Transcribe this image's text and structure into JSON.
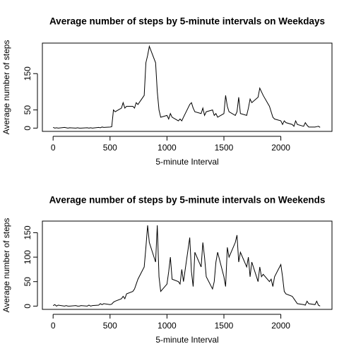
{
  "chart_data": [
    {
      "type": "line",
      "title": "Average number of steps by 5-minute intervals on Weekdays",
      "x_label": "5-minute Interval",
      "y_label": "Average number of steps",
      "x": [
        0,
        15,
        30,
        45,
        100,
        115,
        130,
        145,
        200,
        215,
        230,
        245,
        300,
        315,
        330,
        345,
        400,
        415,
        430,
        445,
        500,
        515,
        530,
        545,
        600,
        615,
        630,
        645,
        700,
        715,
        730,
        745,
        800,
        815,
        830,
        845,
        900,
        915,
        930,
        945,
        1000,
        1015,
        1030,
        1045,
        1100,
        1115,
        1130,
        1145,
        1200,
        1215,
        1230,
        1245,
        1300,
        1315,
        1330,
        1345,
        1400,
        1415,
        1430,
        1445,
        1500,
        1515,
        1530,
        1545,
        1600,
        1615,
        1630,
        1645,
        1700,
        1715,
        1730,
        1745,
        1800,
        1815,
        1830,
        1845,
        1900,
        1915,
        1930,
        1945,
        2000,
        2015,
        2030,
        2045,
        2100,
        2115,
        2130,
        2145,
        2200,
        2215,
        2230,
        2245,
        2300,
        2315,
        2330,
        2345
      ],
      "series": [
        {
          "name": "Weekdays",
          "color": "#000000",
          "values": [
            2,
            0,
            1,
            0,
            2,
            1,
            0,
            1,
            0,
            1,
            0,
            0,
            1,
            0,
            1,
            0,
            2,
            1,
            3,
            2,
            3,
            4,
            50,
            45,
            55,
            70,
            55,
            60,
            60,
            55,
            70,
            65,
            90,
            180,
            200,
            225,
            180,
            100,
            50,
            30,
            35,
            25,
            40,
            30,
            20,
            25,
            20,
            30,
            65,
            70,
            55,
            45,
            40,
            55,
            35,
            45,
            50,
            35,
            40,
            30,
            40,
            90,
            60,
            45,
            35,
            45,
            85,
            40,
            35,
            55,
            80,
            70,
            85,
            110,
            100,
            90,
            60,
            45,
            30,
            25,
            20,
            10,
            20,
            15,
            10,
            5,
            20,
            10,
            5,
            15,
            8,
            3,
            3,
            4,
            5,
            2
          ]
        }
      ],
      "xlim": [
        -94.2,
        2449.2
      ],
      "xticks": [
        0,
        500,
        1000,
        1500,
        2000
      ],
      "ylim": [
        -9,
        234
      ],
      "yticks": [
        0,
        50,
        150
      ]
    },
    {
      "type": "line",
      "title": "Average number of steps by 5-minute intervals on Weekends",
      "x_label": "5-minute Interval",
      "y_label": "Average number of steps",
      "x": [
        0,
        15,
        30,
        45,
        100,
        115,
        130,
        145,
        200,
        215,
        230,
        245,
        300,
        315,
        330,
        345,
        400,
        415,
        430,
        445,
        500,
        515,
        530,
        545,
        600,
        615,
        630,
        645,
        700,
        715,
        730,
        745,
        800,
        815,
        830,
        845,
        900,
        915,
        930,
        945,
        1000,
        1015,
        1030,
        1045,
        1100,
        1115,
        1130,
        1145,
        1200,
        1215,
        1230,
        1245,
        1300,
        1315,
        1330,
        1345,
        1400,
        1415,
        1430,
        1445,
        1500,
        1515,
        1530,
        1545,
        1600,
        1615,
        1630,
        1645,
        1700,
        1715,
        1730,
        1745,
        1800,
        1815,
        1830,
        1845,
        1900,
        1915,
        1930,
        1945,
        2000,
        2015,
        2030,
        2045,
        2100,
        2115,
        2130,
        2145,
        2200,
        2215,
        2230,
        2245,
        2300,
        2315,
        2330,
        2345
      ],
      "series": [
        {
          "name": "Weekends",
          "color": "#000000",
          "values": [
            1,
            3,
            0,
            2,
            0,
            1,
            0,
            0,
            1,
            0,
            0,
            1,
            0,
            2,
            0,
            1,
            2,
            5,
            3,
            5,
            3,
            4,
            8,
            10,
            15,
            20,
            15,
            25,
            30,
            35,
            45,
            55,
            80,
            120,
            165,
            130,
            90,
            165,
            60,
            30,
            45,
            70,
            100,
            55,
            50,
            45,
            75,
            50,
            140,
            70,
            40,
            110,
            80,
            130,
            100,
            60,
            35,
            50,
            90,
            110,
            60,
            40,
            120,
            100,
            130,
            145,
            90,
            110,
            80,
            100,
            60,
            90,
            50,
            80,
            60,
            65,
            50,
            55,
            40,
            60,
            85,
            60,
            30,
            25,
            20,
            15,
            10,
            5,
            3,
            2,
            10,
            5,
            3,
            10,
            2,
            0
          ]
        }
      ],
      "xlim": [
        -94.2,
        2449.2
      ],
      "xticks": [
        0,
        500,
        1000,
        1500,
        2000
      ],
      "ylim": [
        -6.7,
        173.7
      ],
      "yticks": [
        0,
        50,
        100,
        150
      ]
    }
  ]
}
